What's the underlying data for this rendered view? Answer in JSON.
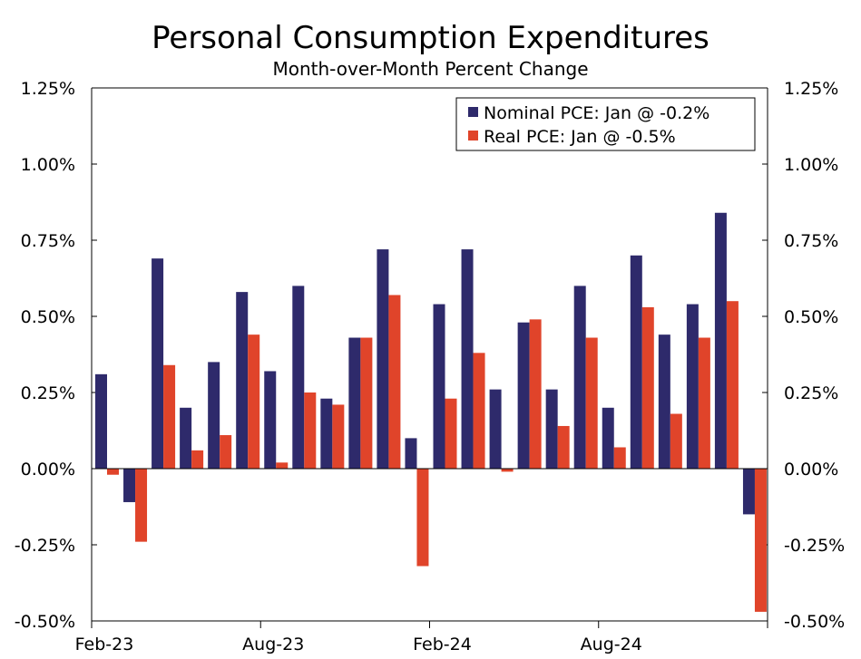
{
  "chart_data": {
    "type": "bar",
    "title": "Personal Consumption Expenditures",
    "subtitle": "Month-over-Month Percent Change",
    "categories": [
      "Feb-23",
      "Mar-23",
      "Apr-23",
      "May-23",
      "Jun-23",
      "Jul-23",
      "Aug-23",
      "Sep-23",
      "Oct-23",
      "Nov-23",
      "Dec-23",
      "Jan-24",
      "Feb-24",
      "Mar-24",
      "Apr-24",
      "May-24",
      "Jun-24",
      "Jul-24",
      "Aug-24",
      "Sep-24",
      "Oct-24",
      "Nov-24",
      "Dec-24",
      "Jan-25"
    ],
    "x_tick_labels": [
      "Feb-23",
      "Aug-23",
      "Feb-24",
      "Aug-24"
    ],
    "series": [
      {
        "name": "Nominal PCE: Jan @ -0.2%",
        "color": "#2e2a6b",
        "values": [
          0.31,
          -0.11,
          0.69,
          0.2,
          0.35,
          0.58,
          0.32,
          0.6,
          0.23,
          0.43,
          0.72,
          0.1,
          0.54,
          0.72,
          0.26,
          0.48,
          0.26,
          0.6,
          0.2,
          0.7,
          0.44,
          0.54,
          0.84,
          -0.15
        ]
      },
      {
        "name": "Real PCE: Jan @ -0.5%",
        "color": "#e0442a",
        "values": [
          -0.02,
          -0.24,
          0.34,
          0.06,
          0.11,
          0.44,
          0.02,
          0.25,
          0.21,
          0.43,
          0.57,
          -0.32,
          0.23,
          0.38,
          -0.01,
          0.49,
          0.14,
          0.43,
          0.07,
          0.53,
          0.18,
          0.43,
          0.55,
          -0.47
        ]
      }
    ],
    "y_tick_labels": [
      "1.25%",
      "1.00%",
      "0.75%",
      "0.50%",
      "0.25%",
      "0.00%",
      "-0.25%",
      "-0.50%"
    ],
    "ylim": [
      -0.5,
      1.25
    ],
    "ytick_step": 0.25,
    "legend_position": "top-right",
    "grid": false
  }
}
